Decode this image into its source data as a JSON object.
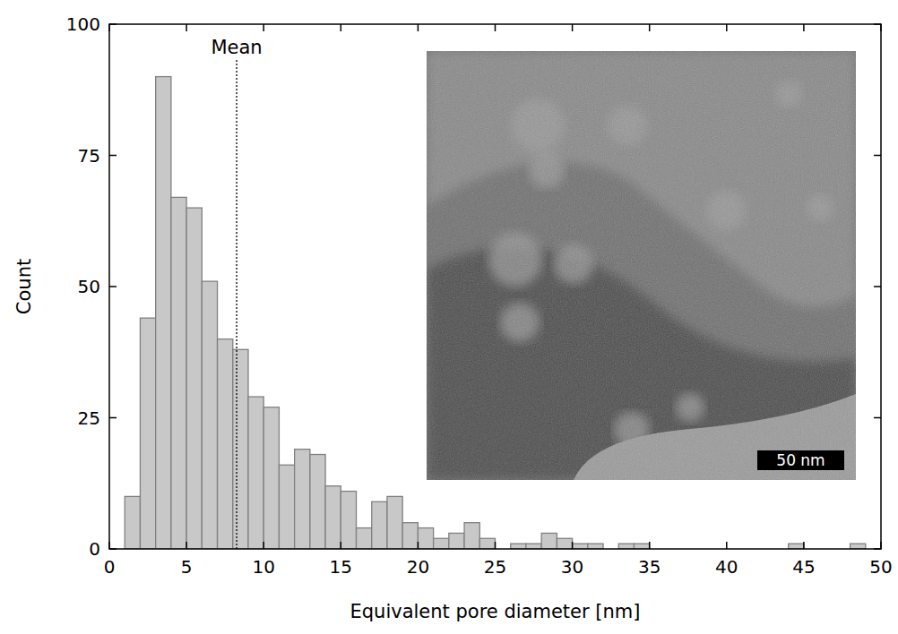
{
  "chart_data": {
    "type": "histogram",
    "x_label": "Equivalent pore diameter [nm]",
    "y_label": "Count",
    "bins": [
      1,
      2,
      3,
      4,
      5,
      6,
      7,
      8,
      9,
      10,
      11,
      12,
      13,
      14,
      15,
      16,
      17,
      18,
      19,
      20,
      21,
      22,
      23,
      24,
      25,
      26,
      27,
      28,
      29,
      30,
      31,
      32,
      33,
      34,
      35,
      36,
      37,
      38,
      39,
      40,
      41,
      42,
      43,
      44,
      45,
      46,
      47,
      48,
      49
    ],
    "values": [
      10,
      44,
      90,
      67,
      65,
      51,
      40,
      38,
      29,
      27,
      16,
      19,
      18,
      12,
      11,
      4,
      9,
      10,
      5,
      4,
      2,
      3,
      5,
      2,
      0,
      1,
      1,
      3,
      2,
      1,
      1,
      0,
      1,
      1,
      0,
      0,
      0,
      0,
      0,
      0,
      0,
      0,
      0,
      1,
      0,
      0,
      0,
      1
    ],
    "color": "#c8c8c8",
    "xlim": [
      0,
      50
    ],
    "xticks": [
      0,
      5,
      10,
      15,
      20,
      25,
      30,
      35,
      40,
      45,
      50
    ],
    "ylim": [
      0,
      100
    ],
    "yticks": [
      0,
      25,
      50,
      75,
      100
    ],
    "grid": false,
    "mean_line": {
      "x": 8.25,
      "label": "Mean"
    },
    "inset": {
      "scale_bar_label": "50 nm"
    }
  }
}
